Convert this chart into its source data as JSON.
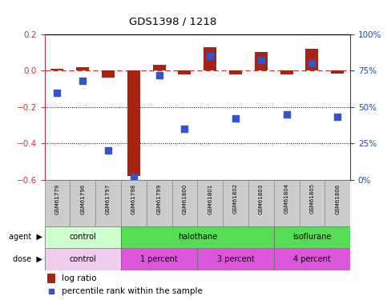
{
  "title": "GDS1398 / 1218",
  "samples": [
    "GSM61779",
    "GSM61796",
    "GSM61797",
    "GSM61798",
    "GSM61799",
    "GSM61800",
    "GSM61801",
    "GSM61802",
    "GSM61803",
    "GSM61804",
    "GSM61805",
    "GSM61806"
  ],
  "log_ratio": [
    0.01,
    0.02,
    -0.04,
    -0.58,
    0.03,
    -0.02,
    0.13,
    -0.02,
    0.1,
    -0.02,
    0.12,
    -0.015
  ],
  "percentile": [
    60,
    68,
    20,
    2,
    72,
    35,
    85,
    42,
    82,
    45,
    80,
    43
  ],
  "ylim": [
    -0.6,
    0.2
  ],
  "yticks": [
    0.2,
    0.0,
    -0.2,
    -0.4,
    -0.6
  ],
  "right_ylim": [
    0,
    100
  ],
  "right_yticks": [
    0,
    25,
    50,
    75,
    100
  ],
  "right_yticklabels": [
    "0%",
    "25%",
    "50%",
    "75%",
    "100%"
  ],
  "bar_color": "#aa2211",
  "dot_color": "#3355cc",
  "dashed_line_color": "#cc3333",
  "agent_groups": [
    {
      "label": "control",
      "start": 0,
      "end": 3,
      "color": "#ccffcc"
    },
    {
      "label": "halothane",
      "start": 3,
      "end": 9,
      "color": "#55dd55"
    },
    {
      "label": "isoflurane",
      "start": 9,
      "end": 12,
      "color": "#55dd55"
    }
  ],
  "dose_groups": [
    {
      "label": "control",
      "start": 0,
      "end": 3,
      "color": "#eeccee"
    },
    {
      "label": "1 percent",
      "start": 3,
      "end": 6,
      "color": "#dd55dd"
    },
    {
      "label": "3 percent",
      "start": 6,
      "end": 9,
      "color": "#dd55dd"
    },
    {
      "label": "4 percent",
      "start": 9,
      "end": 12,
      "color": "#dd55dd"
    }
  ],
  "legend_log_ratio": "log ratio",
  "legend_percentile": "percentile rank within the sample",
  "agent_label": "agent",
  "dose_label": "dose",
  "bar_width": 0.5,
  "dot_size": 28
}
